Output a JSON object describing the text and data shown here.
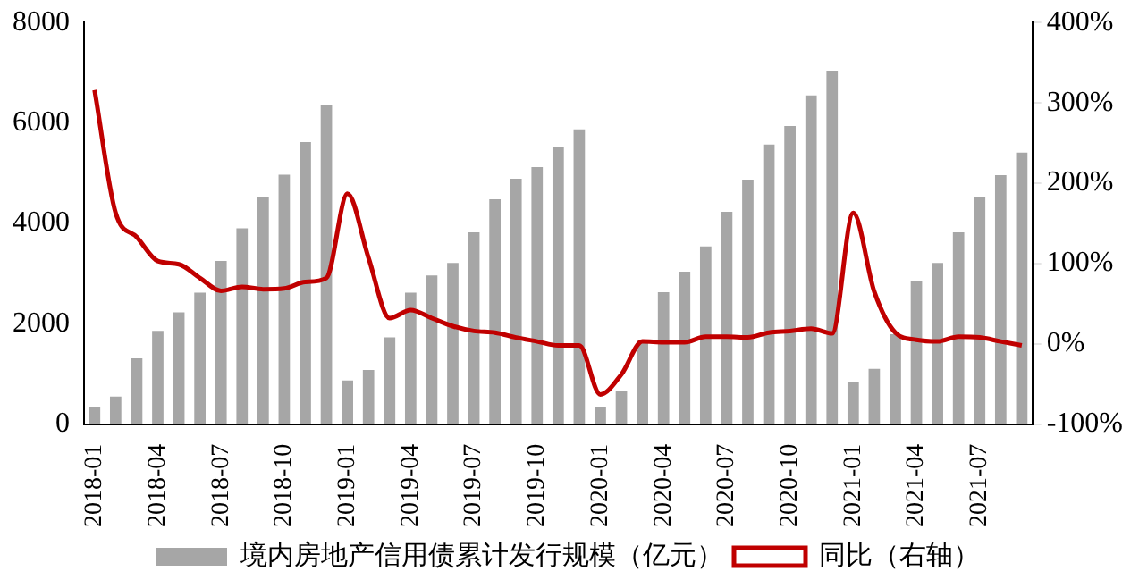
{
  "chart_data": {
    "type": "bar",
    "categories": [
      "2018-01",
      null,
      null,
      "2018-04",
      null,
      null,
      "2018-07",
      null,
      null,
      "2018-10",
      null,
      null,
      "2019-01",
      null,
      null,
      "2019-04",
      null,
      null,
      "2019-07",
      null,
      null,
      "2019-10",
      null,
      null,
      "2020-01",
      null,
      null,
      "2020-04",
      null,
      null,
      "2020-07",
      null,
      null,
      "2020-10",
      null,
      null,
      "2021-01",
      null,
      null,
      "2021-04",
      null,
      null,
      "2021-07",
      null,
      null
    ],
    "series": [
      {
        "name": "境内房地产信用债累计发行规模（亿元）",
        "color": "#a6a6a6",
        "values": [
          340,
          550,
          1310,
          1860,
          2230,
          2620,
          3250,
          3900,
          4520,
          4970,
          5620,
          6350,
          870,
          1080,
          1730,
          2620,
          2960,
          3210,
          3820,
          4480,
          4890,
          5120,
          5530,
          5870,
          340,
          670,
          1680,
          2630,
          3040,
          3540,
          4230,
          4870,
          5570,
          5940,
          6550,
          7040,
          830,
          1100,
          1790,
          2840,
          3210,
          3820,
          4520,
          4960,
          5410
        ]
      },
      {
        "name": "同比（右轴）",
        "type": "line",
        "axis": "y2",
        "color": "#c00000",
        "values": [
          316,
          163,
          133,
          103,
          99,
          82,
          66,
          71,
          68,
          69,
          77,
          82,
          187,
          107,
          32,
          42,
          32,
          22,
          16,
          14,
          8,
          3,
          -2,
          -2,
          -63,
          -38,
          3,
          2,
          2,
          9,
          9,
          8,
          14,
          16,
          19,
          13,
          163,
          65,
          14,
          5,
          3,
          9,
          8,
          3,
          -2
        ]
      }
    ],
    "ylim": [
      0,
      8000
    ],
    "yticks": [
      0,
      2000,
      4000,
      6000,
      8000
    ],
    "y2lim": [
      -100,
      400
    ],
    "y2ticks": [
      {
        "value": -100,
        "label": "-100%"
      },
      {
        "value": 0,
        "label": "0%"
      },
      {
        "value": 100,
        "label": "100%"
      },
      {
        "value": 200,
        "label": "200%"
      },
      {
        "value": 300,
        "label": "300%"
      },
      {
        "value": 400,
        "label": "400%"
      }
    ],
    "grid": false,
    "legend": "bottom",
    "marker": "none"
  }
}
